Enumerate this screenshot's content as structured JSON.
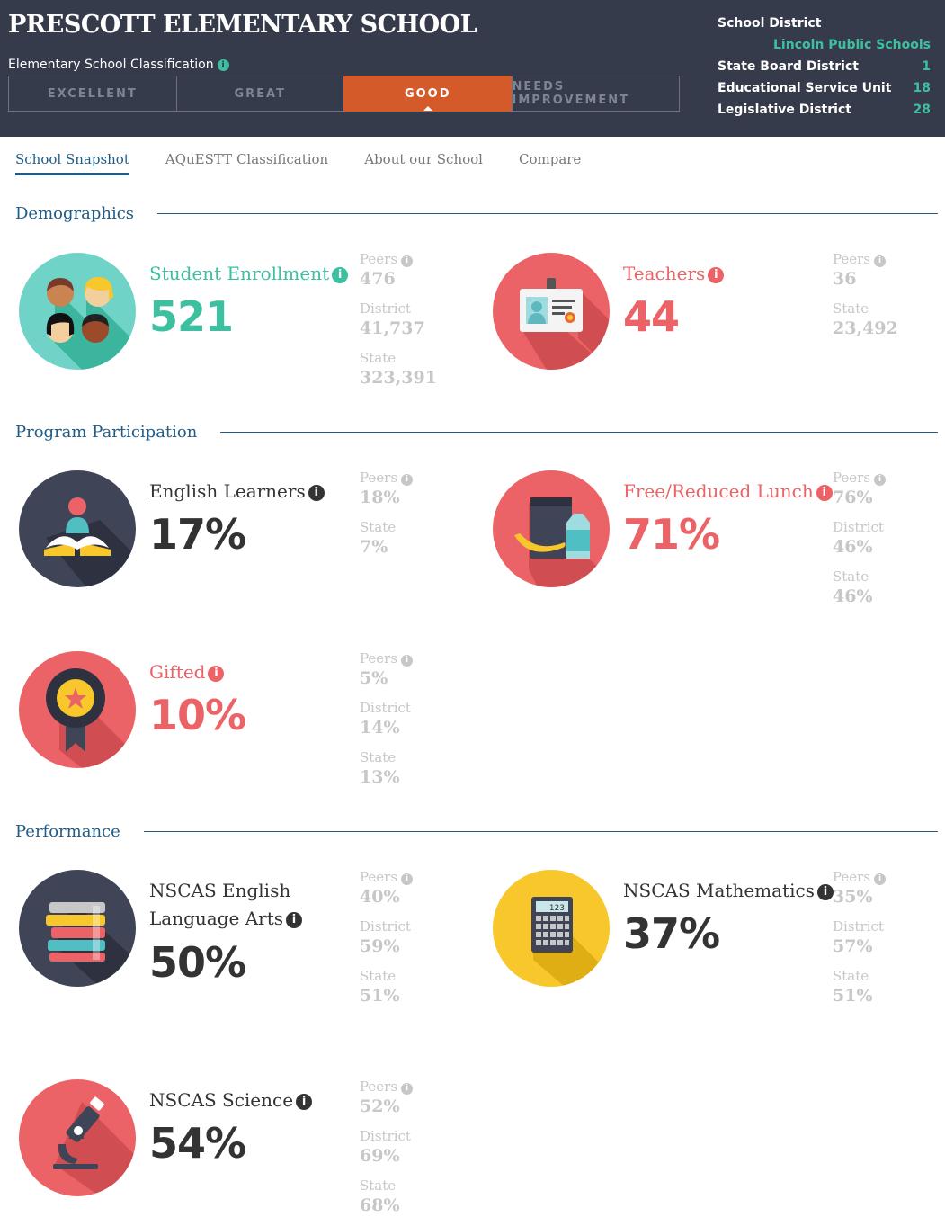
{
  "header": {
    "title": "PRESCOTT ELEMENTARY SCHOOL",
    "classification_label": "Elementary School Classification",
    "classifications": [
      "EXCELLENT",
      "GREAT",
      "GOOD",
      "NEEDS IMPROVEMENT"
    ],
    "active_classification": "GOOD",
    "district_info": {
      "school_district_label": "School District",
      "school_district_value": "Lincoln Public Schools",
      "state_board_label": "State Board District",
      "state_board_value": "1",
      "esu_label": "Educational Service Unit",
      "esu_value": "18",
      "legislative_label": "Legislative District",
      "legislative_value": "28"
    }
  },
  "tabs": [
    "School Snapshot",
    "AQuESTT Classification",
    "About our School",
    "Compare"
  ],
  "sections": {
    "demographics": "Demographics",
    "program": "Program Participation",
    "performance": "Performance"
  },
  "stats": {
    "enrollment": {
      "label": "Student Enrollment",
      "value": "521",
      "peers_label": "Peers",
      "peers": "476",
      "district_label": "District",
      "district": "41,737",
      "state_label": "State",
      "state": "323,391"
    },
    "teachers": {
      "label": "Teachers",
      "value": "44",
      "peers_label": "Peers",
      "peers": "36",
      "state_label": "State",
      "state": "23,492"
    },
    "english_learners": {
      "label": "English Learners",
      "value": "17%",
      "peers_label": "Peers",
      "peers": "18%",
      "state_label": "State",
      "state": "7%"
    },
    "lunch": {
      "label": "Free/Reduced Lunch",
      "value": "71%",
      "peers_label": "Peers",
      "peers": "76%",
      "district_label": "District",
      "district": "46%",
      "state_label": "State",
      "state": "46%"
    },
    "gifted": {
      "label": "Gifted",
      "value": "10%",
      "peers_label": "Peers",
      "peers": "5%",
      "district_label": "District",
      "district": "14%",
      "state_label": "State",
      "state": "13%"
    },
    "ela": {
      "label_line1": "NSCAS English",
      "label_line2": "Language Arts",
      "value": "50%",
      "peers_label": "Peers",
      "peers": "40%",
      "district_label": "District",
      "district": "59%",
      "state_label": "State",
      "state": "51%"
    },
    "math": {
      "label": "NSCAS Mathematics",
      "value": "37%",
      "peers_label": "Peers",
      "peers": "35%",
      "district_label": "District",
      "district": "57%",
      "state_label": "State",
      "state": "51%",
      "calc_display": "123"
    },
    "science": {
      "label": "NSCAS Science",
      "value": "54%",
      "peers_label": "Peers",
      "peers": "52%",
      "district_label": "District",
      "district": "69%",
      "state_label": "State",
      "state": "68%"
    }
  },
  "colors": {
    "teal": "#3cc0a0",
    "coral": "#ec6367",
    "dark": "#333333",
    "navy": "#1f5c88",
    "header_bg": "#363b4b",
    "good": "#d45a2a",
    "yellow": "#f7c72b"
  }
}
